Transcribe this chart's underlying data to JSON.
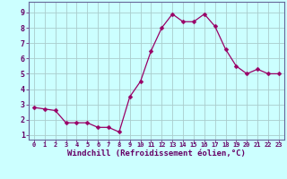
{
  "x": [
    0,
    1,
    2,
    3,
    4,
    5,
    6,
    7,
    8,
    9,
    10,
    11,
    12,
    13,
    14,
    15,
    16,
    17,
    18,
    19,
    20,
    21,
    22,
    23
  ],
  "y": [
    2.8,
    2.7,
    2.6,
    1.8,
    1.8,
    1.8,
    1.5,
    1.5,
    1.2,
    3.5,
    4.5,
    6.5,
    8.0,
    8.9,
    8.4,
    8.4,
    8.9,
    8.1,
    6.6,
    5.5,
    5.0,
    5.3,
    5.0,
    5.0
  ],
  "xlabel": "Windchill (Refroidissement éolien,°C)",
  "line_color": "#990066",
  "marker": "D",
  "marker_size": 2.5,
  "background_color": "#ccffff",
  "grid_color": "#aacccc",
  "xlim": [
    -0.5,
    23.5
  ],
  "ylim": [
    0.7,
    9.7
  ],
  "xticks": [
    0,
    1,
    2,
    3,
    4,
    5,
    6,
    7,
    8,
    9,
    10,
    11,
    12,
    13,
    14,
    15,
    16,
    17,
    18,
    19,
    20,
    21,
    22,
    23
  ],
  "yticks": [
    1,
    2,
    3,
    4,
    5,
    6,
    7,
    8,
    9
  ],
  "label_color": "#660066",
  "spine_color": "#666699",
  "font_size_x": 5.0,
  "font_size_y": 6.0,
  "font_size_xlabel": 6.5
}
